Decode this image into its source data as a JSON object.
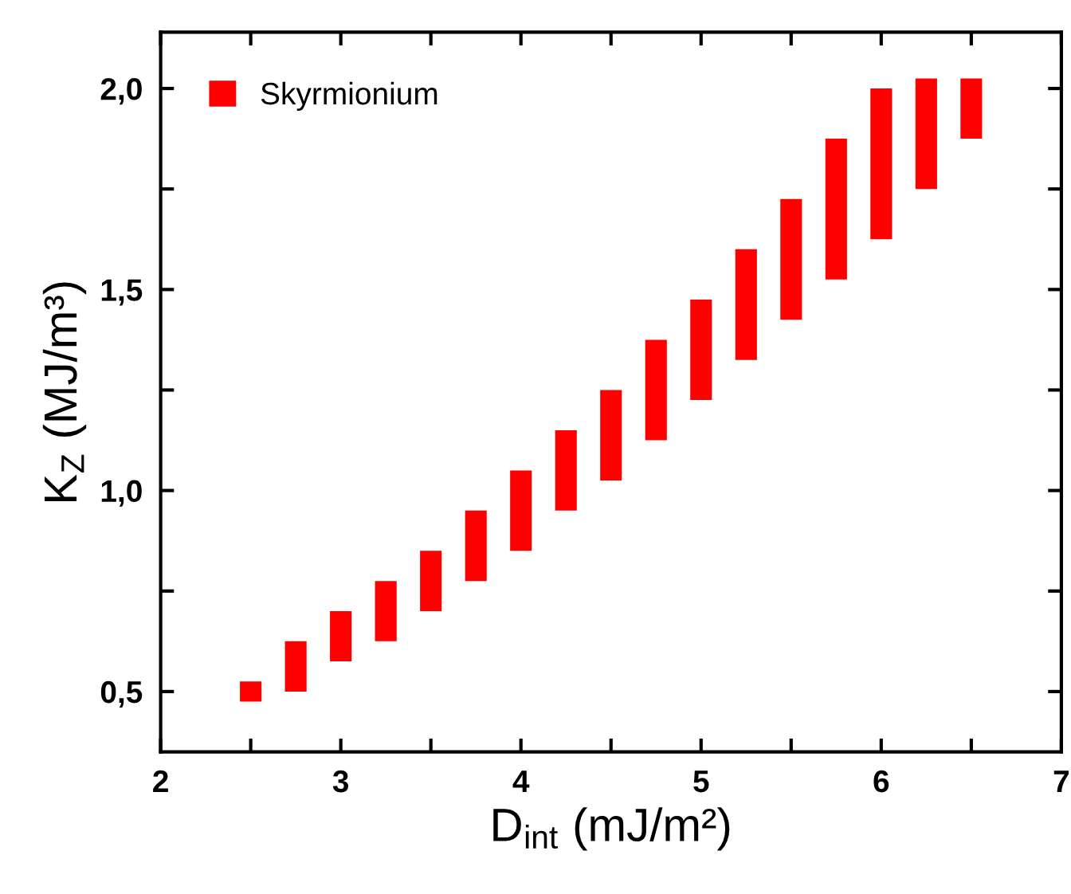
{
  "chart_data": {
    "type": "bar",
    "xlabel": "D$_{int}$ (mJ/m²)",
    "ylabel": "K$_{Z}$ (MJ/m³)",
    "x": [
      2.5,
      2.75,
      3.0,
      3.25,
      3.5,
      3.75,
      4.0,
      4.25,
      4.5,
      4.75,
      5.0,
      5.25,
      5.5,
      5.75,
      6.0,
      6.25,
      6.5
    ],
    "series": [
      {
        "name": "Skyrmionium",
        "color": "#ff0000",
        "base": [
          0.475,
          0.5,
          0.575,
          0.625,
          0.7,
          0.775,
          0.85,
          0.95,
          1.025,
          1.125,
          1.225,
          1.325,
          1.425,
          1.525,
          1.625,
          1.75,
          1.875
        ],
        "values": [
          0.05,
          0.125,
          0.125,
          0.15,
          0.15,
          0.175,
          0.2,
          0.2,
          0.225,
          0.25,
          0.25,
          0.275,
          0.3,
          0.35,
          0.375,
          0.275,
          0.15
        ]
      }
    ],
    "xlim": [
      2,
      7
    ],
    "xticks": [
      2,
      {
        "value": 2.5,
        "label": null
      },
      3,
      {
        "value": 3.5,
        "label": null
      },
      4,
      {
        "value": 4.5,
        "label": null
      },
      5,
      {
        "value": 5.5,
        "label": null
      },
      6,
      {
        "value": 6.5,
        "label": null
      },
      7
    ],
    "ylim": [
      0.35,
      2.14
    ],
    "yticks": [
      {
        "value": 0.5,
        "label": "0,5"
      },
      {
        "value": 0.75,
        "label": null
      },
      {
        "value": 1.0,
        "label": "1,0"
      },
      {
        "value": 1.25,
        "label": null
      },
      {
        "value": 1.5,
        "label": "1,5"
      },
      {
        "value": 1.75,
        "label": null
      },
      {
        "value": 2.0,
        "label": "2,0"
      }
    ],
    "grid": false,
    "legend": "top left"
  }
}
